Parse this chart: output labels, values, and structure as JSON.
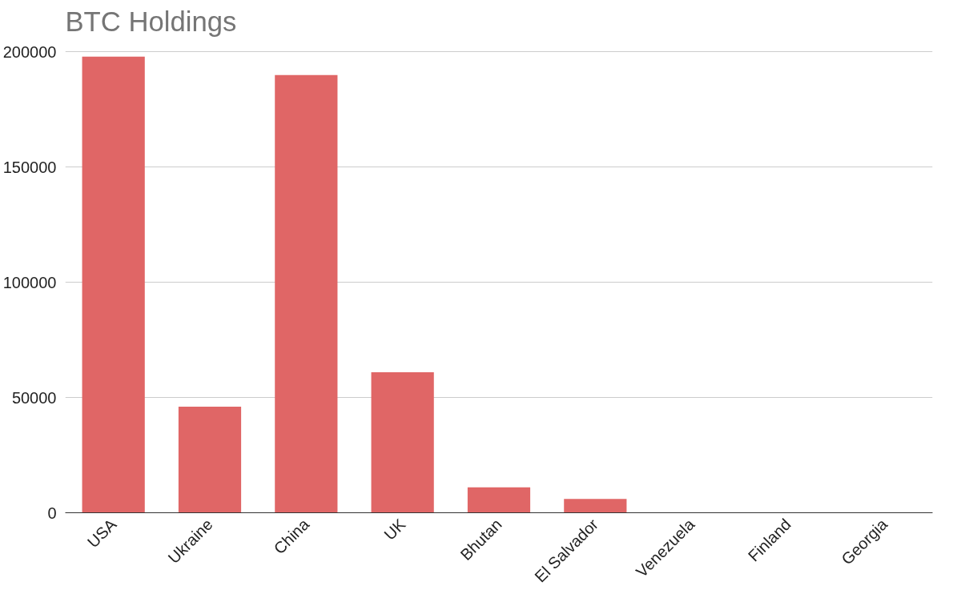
{
  "chart_data": {
    "type": "bar",
    "title": "BTC Holdings",
    "categories": [
      "USA",
      "Ukraine",
      "China",
      "UK",
      "Bhutan",
      "El Salvador",
      "Venezuela",
      "Finland",
      "Georgia"
    ],
    "values": [
      198000,
      46000,
      190000,
      61000,
      11000,
      6000,
      0,
      0,
      0
    ],
    "color": "#e06666",
    "ylim": [
      0,
      200000
    ],
    "yticks": [
      0,
      50000,
      100000,
      150000,
      200000
    ],
    "grid": "y"
  }
}
